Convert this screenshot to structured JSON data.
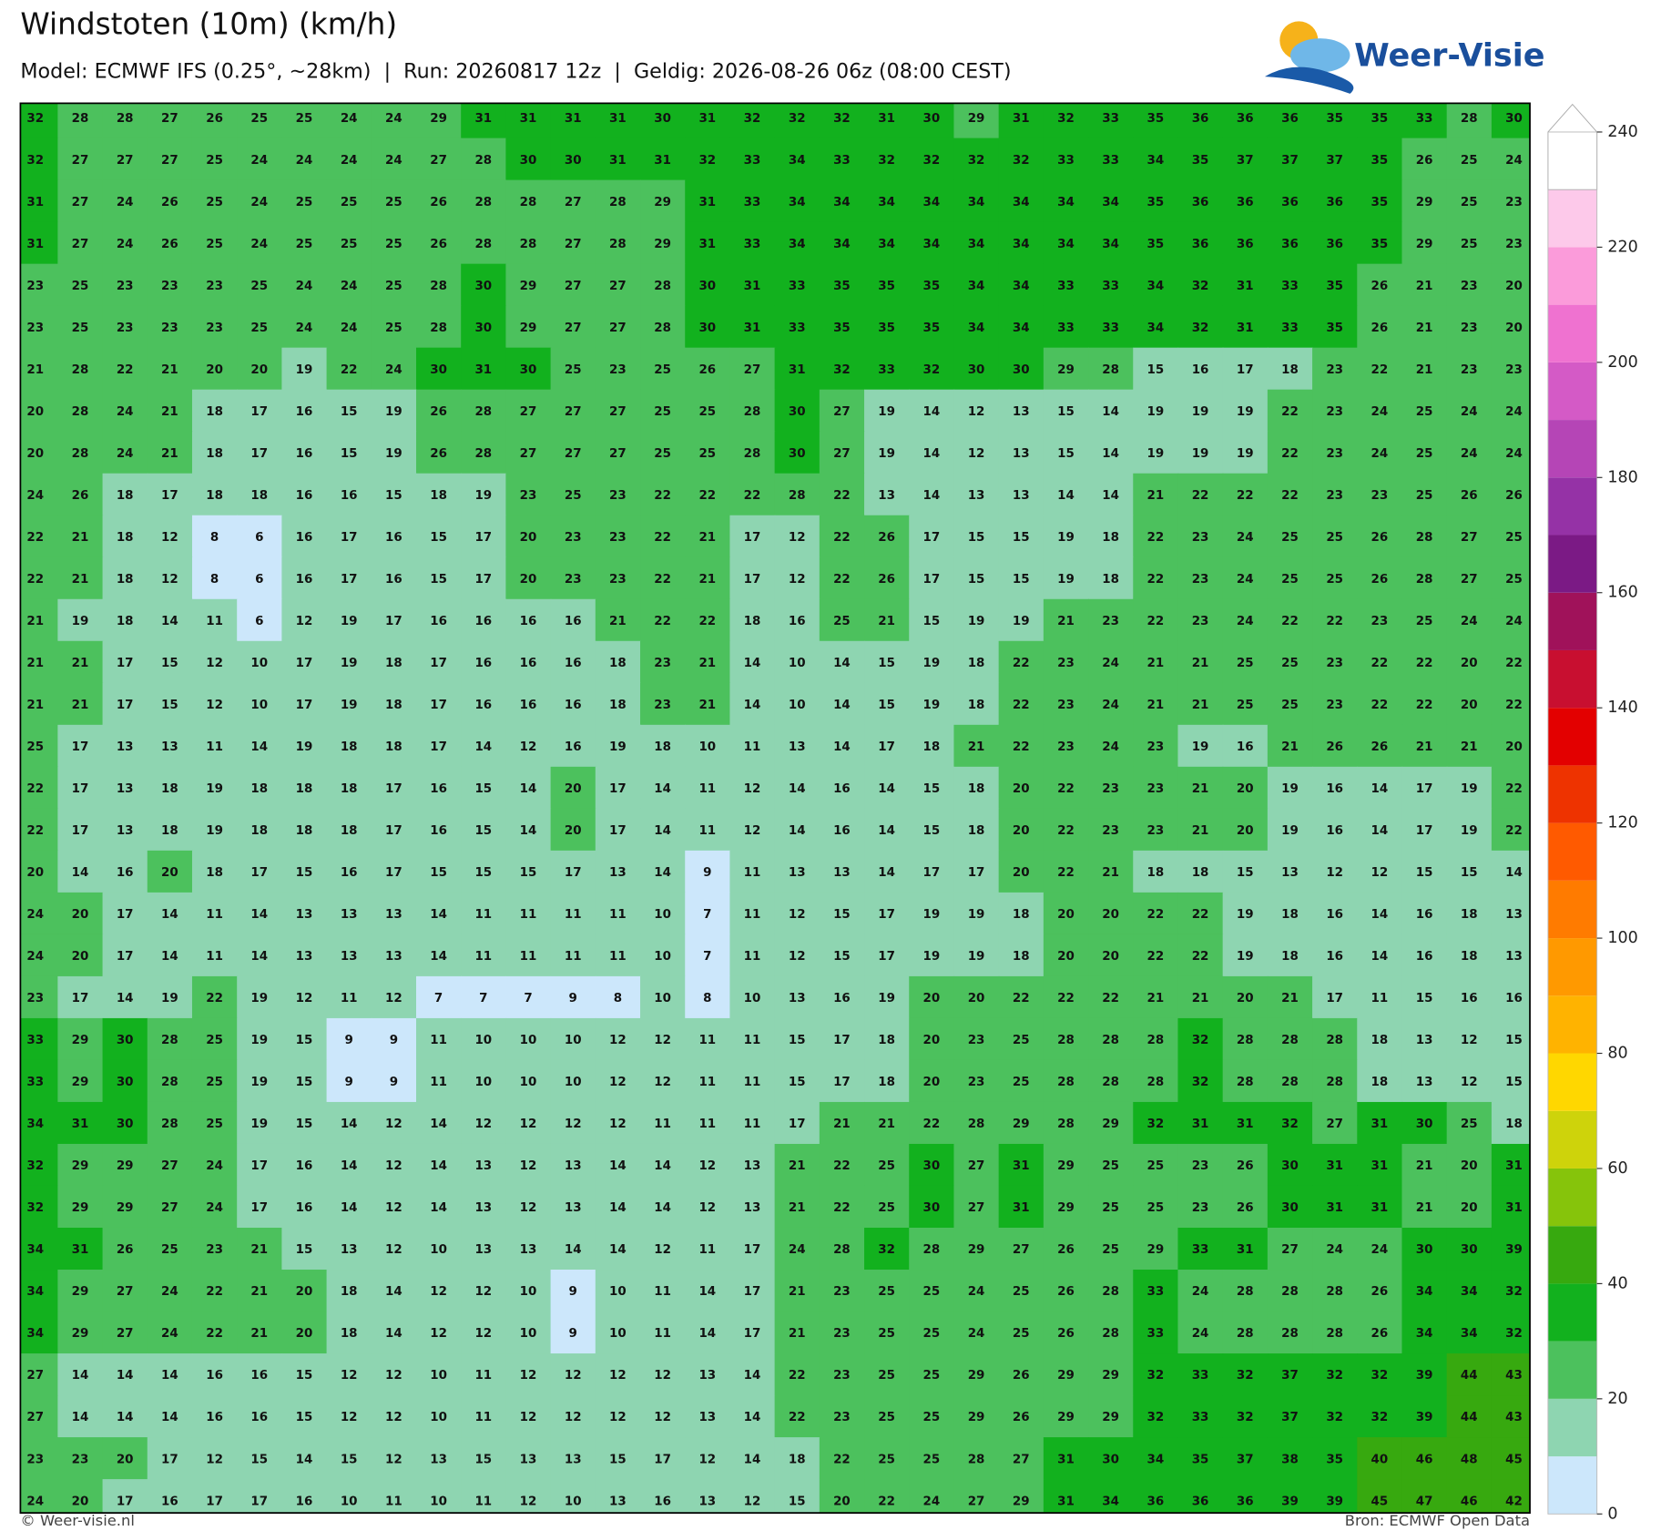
{
  "header": {
    "title": "Windstoten (10m) (km/h)",
    "subtitle": "Model: ECMWF IFS (0.25°, ~28km)  |  Run: 20260817 12z  |  Geldig: 2026-08-26 06z (08:00 CEST)"
  },
  "logo": "Weer-Visie",
  "footer": {
    "left": "© Weer-visie.nl",
    "right": "Bron: ECMWF Open Data"
  },
  "colorbar": {
    "ticks": [
      0,
      20,
      40,
      60,
      80,
      100,
      120,
      140,
      160,
      180,
      200,
      220,
      240
    ],
    "bounds": [
      0,
      10,
      20,
      30,
      40,
      50,
      60,
      70,
      80,
      90,
      100,
      110,
      120,
      130,
      140,
      150,
      160,
      170,
      180,
      190,
      200,
      210,
      220,
      230,
      240
    ],
    "colors": [
      "#cce7fb",
      "#8ed5b1",
      "#4cc15d",
      "#12b11e",
      "#37a90f",
      "#86c40b",
      "#ced30b",
      "#ffd700",
      "#ffb300",
      "#ff9900",
      "#ff7b00",
      "#ff5a00",
      "#ee3300",
      "#e30000",
      "#c80f30",
      "#a0125a",
      "#7b1a85",
      "#9532a6",
      "#b545b6",
      "#d45ac6",
      "#ef72d0",
      "#fb9bda",
      "#fdc9ea",
      "#ffffff"
    ]
  },
  "map": {
    "grid": [
      [
        32,
        28,
        28,
        27,
        26,
        25,
        25,
        24,
        24,
        29,
        31,
        31,
        31,
        31,
        30,
        31,
        32,
        32,
        32,
        31,
        30,
        29,
        31,
        32,
        33,
        35,
        36,
        36,
        36,
        35,
        35,
        33,
        28,
        30
      ],
      [
        32,
        27,
        27,
        27,
        25,
        24,
        24,
        24,
        24,
        27,
        28,
        30,
        30,
        31,
        31,
        32,
        33,
        34,
        33,
        32,
        32,
        32,
        32,
        33,
        33,
        34,
        35,
        37,
        37,
        37,
        35,
        26,
        25,
        24
      ],
      [
        31,
        27,
        24,
        26,
        25,
        24,
        25,
        25,
        25,
        26,
        28,
        28,
        27,
        28,
        29,
        31,
        33,
        34,
        34,
        34,
        34,
        34,
        34,
        34,
        34,
        35,
        36,
        36,
        36,
        36,
        35,
        29,
        25,
        23
      ],
      [
        31,
        27,
        24,
        26,
        25,
        24,
        25,
        25,
        25,
        26,
        28,
        28,
        27,
        28,
        29,
        31,
        33,
        34,
        34,
        34,
        34,
        34,
        34,
        34,
        34,
        35,
        36,
        36,
        36,
        36,
        35,
        29,
        25,
        23
      ],
      [
        23,
        25,
        23,
        23,
        23,
        25,
        24,
        24,
        25,
        28,
        30,
        29,
        27,
        27,
        28,
        30,
        31,
        33,
        35,
        35,
        35,
        34,
        34,
        33,
        33,
        34,
        32,
        31,
        33,
        35,
        26,
        21,
        23,
        20
      ],
      [
        23,
        25,
        23,
        23,
        23,
        25,
        24,
        24,
        25,
        28,
        30,
        29,
        27,
        27,
        28,
        30,
        31,
        33,
        35,
        35,
        35,
        34,
        34,
        33,
        33,
        34,
        32,
        31,
        33,
        35,
        26,
        21,
        23,
        20
      ],
      [
        21,
        28,
        22,
        21,
        20,
        20,
        19,
        22,
        24,
        30,
        31,
        30,
        25,
        23,
        25,
        26,
        27,
        31,
        32,
        33,
        32,
        30,
        30,
        29,
        28,
        15,
        16,
        17,
        18,
        23,
        22,
        21,
        23,
        23
      ],
      [
        20,
        28,
        24,
        21,
        18,
        17,
        16,
        15,
        19,
        26,
        28,
        27,
        27,
        27,
        25,
        25,
        28,
        30,
        27,
        19,
        14,
        12,
        13,
        15,
        14,
        19,
        19,
        19,
        22,
        23,
        24,
        25,
        24,
        24
      ],
      [
        20,
        28,
        24,
        21,
        18,
        17,
        16,
        15,
        19,
        26,
        28,
        27,
        27,
        27,
        25,
        25,
        28,
        30,
        27,
        19,
        14,
        12,
        13,
        15,
        14,
        19,
        19,
        19,
        22,
        23,
        24,
        25,
        24,
        24
      ],
      [
        24,
        26,
        18,
        17,
        18,
        18,
        16,
        16,
        15,
        18,
        19,
        23,
        25,
        23,
        22,
        22,
        22,
        28,
        22,
        13,
        14,
        13,
        13,
        14,
        14,
        21,
        22,
        22,
        22,
        23,
        23,
        25,
        26,
        26
      ],
      [
        22,
        21,
        18,
        12,
        8,
        6,
        16,
        17,
        16,
        15,
        17,
        20,
        23,
        23,
        22,
        21,
        17,
        12,
        22,
        26,
        17,
        15,
        15,
        19,
        18,
        22,
        23,
        24,
        25,
        25,
        26,
        28,
        27,
        25
      ],
      [
        22,
        21,
        18,
        12,
        8,
        6,
        16,
        17,
        16,
        15,
        17,
        20,
        23,
        23,
        22,
        21,
        17,
        12,
        22,
        26,
        17,
        15,
        15,
        19,
        18,
        22,
        23,
        24,
        25,
        25,
        26,
        28,
        27,
        25
      ],
      [
        21,
        19,
        18,
        14,
        11,
        6,
        12,
        19,
        17,
        16,
        16,
        16,
        16,
        21,
        22,
        22,
        18,
        16,
        25,
        21,
        15,
        19,
        19,
        21,
        23,
        22,
        23,
        24,
        22,
        22,
        23,
        25,
        24,
        24
      ],
      [
        21,
        21,
        17,
        15,
        12,
        10,
        17,
        19,
        18,
        17,
        16,
        16,
        16,
        18,
        23,
        21,
        14,
        10,
        14,
        15,
        19,
        18,
        22,
        23,
        24,
        21,
        21,
        25,
        25,
        23,
        22,
        22,
        20,
        22
      ],
      [
        21,
        21,
        17,
        15,
        12,
        10,
        17,
        19,
        18,
        17,
        16,
        16,
        16,
        18,
        23,
        21,
        14,
        10,
        14,
        15,
        19,
        18,
        22,
        23,
        24,
        21,
        21,
        25,
        25,
        23,
        22,
        22,
        20,
        22
      ],
      [
        25,
        17,
        13,
        13,
        11,
        14,
        19,
        18,
        18,
        17,
        14,
        12,
        16,
        19,
        18,
        10,
        11,
        13,
        14,
        17,
        18,
        21,
        22,
        23,
        24,
        23,
        19,
        16,
        21,
        26,
        26,
        21,
        21,
        20
      ],
      [
        22,
        17,
        13,
        18,
        19,
        18,
        18,
        18,
        17,
        16,
        15,
        14,
        20,
        17,
        14,
        11,
        12,
        14,
        16,
        14,
        15,
        18,
        20,
        22,
        23,
        23,
        21,
        20,
        19,
        16,
        14,
        17,
        19,
        22
      ],
      [
        22,
        17,
        13,
        18,
        19,
        18,
        18,
        18,
        17,
        16,
        15,
        14,
        20,
        17,
        14,
        11,
        12,
        14,
        16,
        14,
        15,
        18,
        20,
        22,
        23,
        23,
        21,
        20,
        19,
        16,
        14,
        17,
        19,
        22
      ],
      [
        20,
        14,
        16,
        20,
        18,
        17,
        15,
        16,
        17,
        15,
        15,
        15,
        17,
        13,
        14,
        9,
        11,
        13,
        13,
        14,
        17,
        17,
        20,
        22,
        21,
        18,
        18,
        15,
        13,
        12,
        12,
        15,
        15,
        14
      ],
      [
        24,
        20,
        17,
        14,
        11,
        14,
        13,
        13,
        13,
        14,
        11,
        11,
        11,
        11,
        10,
        7,
        11,
        12,
        15,
        17,
        19,
        19,
        18,
        20,
        20,
        22,
        22,
        19,
        18,
        16,
        14,
        16,
        18,
        13
      ],
      [
        24,
        20,
        17,
        14,
        11,
        14,
        13,
        13,
        13,
        14,
        11,
        11,
        11,
        11,
        10,
        7,
        11,
        12,
        15,
        17,
        19,
        19,
        18,
        20,
        20,
        22,
        22,
        19,
        18,
        16,
        14,
        16,
        18,
        13
      ],
      [
        23,
        17,
        14,
        19,
        22,
        19,
        12,
        11,
        12,
        7,
        7,
        7,
        9,
        8,
        10,
        8,
        10,
        13,
        16,
        19,
        20,
        20,
        22,
        22,
        22,
        21,
        21,
        20,
        21,
        17,
        11,
        15,
        16,
        16
      ],
      [
        33,
        29,
        30,
        28,
        25,
        19,
        15,
        9,
        9,
        11,
        10,
        10,
        10,
        12,
        12,
        11,
        11,
        15,
        17,
        18,
        20,
        23,
        25,
        28,
        28,
        28,
        32,
        28,
        28,
        28,
        18,
        13,
        12,
        15
      ],
      [
        33,
        29,
        30,
        28,
        25,
        19,
        15,
        9,
        9,
        11,
        10,
        10,
        10,
        12,
        12,
        11,
        11,
        15,
        17,
        18,
        20,
        23,
        25,
        28,
        28,
        28,
        32,
        28,
        28,
        28,
        18,
        13,
        12,
        15
      ],
      [
        34,
        31,
        30,
        28,
        25,
        19,
        15,
        14,
        12,
        14,
        12,
        12,
        12,
        12,
        11,
        11,
        11,
        17,
        21,
        21,
        22,
        28,
        29,
        28,
        29,
        32,
        31,
        31,
        32,
        27,
        31,
        30,
        25,
        18
      ],
      [
        32,
        29,
        29,
        27,
        24,
        17,
        16,
        14,
        12,
        14,
        13,
        12,
        13,
        14,
        14,
        12,
        13,
        21,
        22,
        25,
        30,
        27,
        31,
        29,
        25,
        25,
        23,
        26,
        30,
        31,
        31,
        21,
        20,
        31
      ],
      [
        32,
        29,
        29,
        27,
        24,
        17,
        16,
        14,
        12,
        14,
        13,
        12,
        13,
        14,
        14,
        12,
        13,
        21,
        22,
        25,
        30,
        27,
        31,
        29,
        25,
        25,
        23,
        26,
        30,
        31,
        31,
        21,
        20,
        31
      ],
      [
        34,
        31,
        26,
        25,
        23,
        21,
        15,
        13,
        12,
        10,
        13,
        13,
        14,
        14,
        12,
        11,
        17,
        24,
        28,
        32,
        28,
        29,
        27,
        26,
        25,
        29,
        33,
        31,
        27,
        24,
        24,
        30,
        30,
        39
      ],
      [
        34,
        29,
        27,
        24,
        22,
        21,
        20,
        18,
        14,
        12,
        12,
        10,
        9,
        10,
        11,
        14,
        17,
        21,
        23,
        25,
        25,
        24,
        25,
        26,
        28,
        33,
        24,
        28,
        28,
        28,
        26,
        34,
        34,
        32
      ],
      [
        34,
        29,
        27,
        24,
        22,
        21,
        20,
        18,
        14,
        12,
        12,
        10,
        9,
        10,
        11,
        14,
        17,
        21,
        23,
        25,
        25,
        24,
        25,
        26,
        28,
        33,
        24,
        28,
        28,
        28,
        26,
        34,
        34,
        32
      ],
      [
        27,
        14,
        14,
        14,
        16,
        16,
        15,
        12,
        12,
        10,
        11,
        12,
        12,
        12,
        12,
        13,
        14,
        22,
        23,
        25,
        25,
        29,
        26,
        29,
        29,
        32,
        33,
        32,
        37,
        32,
        32,
        39,
        44,
        43
      ],
      [
        27,
        14,
        14,
        14,
        16,
        16,
        15,
        12,
        12,
        10,
        11,
        12,
        12,
        12,
        12,
        13,
        14,
        22,
        23,
        25,
        25,
        29,
        26,
        29,
        29,
        32,
        33,
        32,
        37,
        32,
        32,
        39,
        44,
        43
      ],
      [
        23,
        23,
        20,
        17,
        12,
        15,
        14,
        15,
        12,
        13,
        15,
        13,
        13,
        15,
        17,
        12,
        14,
        18,
        22,
        25,
        25,
        28,
        27,
        31,
        30,
        34,
        35,
        37,
        38,
        35,
        40,
        46,
        48,
        45
      ],
      [
        24,
        20,
        17,
        16,
        17,
        17,
        16,
        10,
        11,
        10,
        11,
        12,
        10,
        13,
        16,
        13,
        12,
        15,
        20,
        22,
        24,
        27,
        29,
        31,
        34,
        36,
        36,
        36,
        39,
        39,
        45,
        47,
        46,
        42
      ]
    ]
  }
}
